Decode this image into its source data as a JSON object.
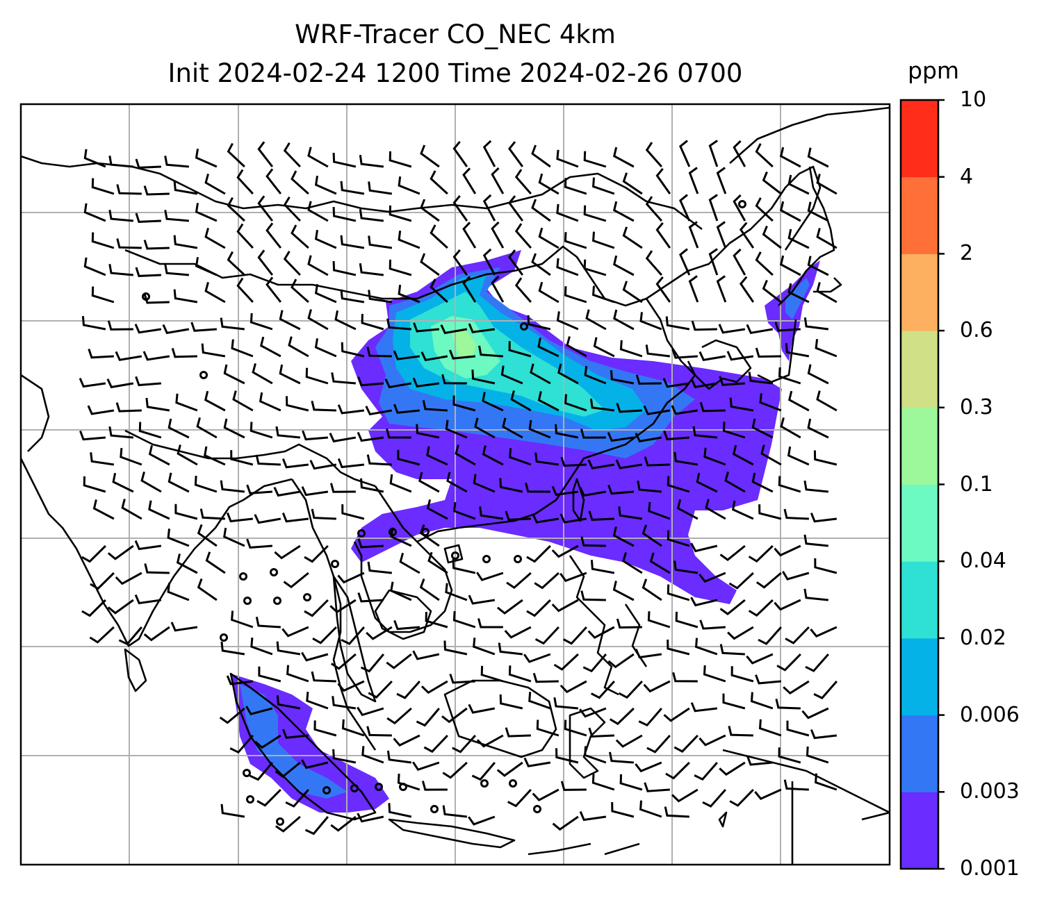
{
  "title": {
    "line1": "WRF-Tracer CO_NEC 4km",
    "line2": "Init 2024-02-24 1200 Time 2024-02-26 0700"
  },
  "colorbar": {
    "unit": "ppm",
    "ticks": [
      "0.001",
      "0.003",
      "0.006",
      "0.02",
      "0.04",
      "0.1",
      "0.3",
      "0.6",
      "2",
      "4",
      "10"
    ],
    "colors": [
      "#6a2cff",
      "#3477f5",
      "#05b2e8",
      "#2fe0d4",
      "#6cf9c2",
      "#9cf89a",
      "#cfe087",
      "#fdb05f",
      "#ff7039",
      "#ff2d1a"
    ]
  },
  "map": {
    "gridlines": true,
    "coastline_color": "#000000",
    "grid_color": "#b0b0b0",
    "barb_color": "#000000"
  }
}
